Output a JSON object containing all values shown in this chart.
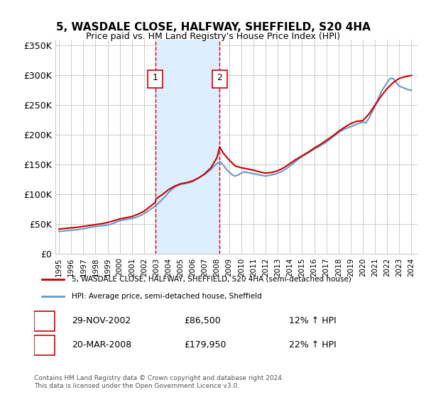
{
  "title": "5, WASDALE CLOSE, HALFWAY, SHEFFIELD, S20 4HA",
  "subtitle": "Price paid vs. HM Land Registry's House Price Index (HPI)",
  "ylabel": "",
  "xlabel": "",
  "ylim": [
    0,
    360000
  ],
  "yticks": [
    0,
    50000,
    100000,
    150000,
    200000,
    250000,
    300000,
    350000
  ],
  "ytick_labels": [
    "£0",
    "£50K",
    "£100K",
    "£150K",
    "£200K",
    "£250K",
    "£300K",
    "£350K"
  ],
  "transaction1": {
    "date_num": 2002.91,
    "price": 86500,
    "label": "1",
    "date_str": "29-NOV-2002",
    "hpi_pct": "12%"
  },
  "transaction2": {
    "date_num": 2008.22,
    "price": 179950,
    "label": "2",
    "date_str": "20-MAR-2008",
    "hpi_pct": "22%"
  },
  "legend_red": "5, WASDALE CLOSE, HALFWAY, SHEFFIELD, S20 4HA (semi-detached house)",
  "legend_blue": "HPI: Average price, semi-detached house, Sheffield",
  "footer": "Contains HM Land Registry data © Crown copyright and database right 2024.\nThis data is licensed under the Open Government Licence v3.0.",
  "red_color": "#cc0000",
  "blue_color": "#6699cc",
  "shade_color": "#ddeeff",
  "grid_color": "#cccccc",
  "bg_color": "#ffffff",
  "marker_box_color": "#cc0000",
  "hpi_data": {
    "years": [
      1995.0,
      1995.25,
      1995.5,
      1995.75,
      1996.0,
      1996.25,
      1996.5,
      1996.75,
      1997.0,
      1997.25,
      1997.5,
      1997.75,
      1998.0,
      1998.25,
      1998.5,
      1998.75,
      1999.0,
      1999.25,
      1999.5,
      1999.75,
      2000.0,
      2000.25,
      2000.5,
      2000.75,
      2001.0,
      2001.25,
      2001.5,
      2001.75,
      2002.0,
      2002.25,
      2002.5,
      2002.75,
      2003.0,
      2003.25,
      2003.5,
      2003.75,
      2004.0,
      2004.25,
      2004.5,
      2004.75,
      2005.0,
      2005.25,
      2005.5,
      2005.75,
      2006.0,
      2006.25,
      2006.5,
      2006.75,
      2007.0,
      2007.25,
      2007.5,
      2007.75,
      2008.0,
      2008.25,
      2008.5,
      2008.75,
      2009.0,
      2009.25,
      2009.5,
      2009.75,
      2010.0,
      2010.25,
      2010.5,
      2010.75,
      2011.0,
      2011.25,
      2011.5,
      2011.75,
      2012.0,
      2012.25,
      2012.5,
      2012.75,
      2013.0,
      2013.25,
      2013.5,
      2013.75,
      2014.0,
      2014.25,
      2014.5,
      2014.75,
      2015.0,
      2015.25,
      2015.5,
      2015.75,
      2016.0,
      2016.25,
      2016.5,
      2016.75,
      2017.0,
      2017.25,
      2017.5,
      2017.75,
      2018.0,
      2018.25,
      2018.5,
      2018.75,
      2019.0,
      2019.25,
      2019.5,
      2019.75,
      2020.0,
      2020.25,
      2020.5,
      2020.75,
      2021.0,
      2021.25,
      2021.5,
      2021.75,
      2022.0,
      2022.25,
      2022.5,
      2022.75,
      2023.0,
      2023.25,
      2023.5,
      2023.75,
      2024.0
    ],
    "values": [
      38000,
      38500,
      39000,
      39500,
      40000,
      40500,
      41000,
      41800,
      42500,
      43500,
      44500,
      45500,
      46500,
      47000,
      47500,
      48000,
      49000,
      50000,
      52000,
      54000,
      56000,
      57000,
      58000,
      59000,
      60000,
      61000,
      63000,
      65000,
      68000,
      71000,
      75000,
      78000,
      82000,
      87000,
      92000,
      97000,
      103000,
      108000,
      112000,
      115000,
      117000,
      118000,
      119000,
      120000,
      122000,
      125000,
      128000,
      131000,
      134000,
      138000,
      142000,
      148000,
      152000,
      155000,
      150000,
      143000,
      138000,
      133000,
      131000,
      133000,
      136000,
      138000,
      137000,
      136000,
      135000,
      134000,
      133000,
      132000,
      131000,
      132000,
      133000,
      134000,
      136000,
      138000,
      141000,
      144000,
      148000,
      152000,
      156000,
      160000,
      164000,
      167000,
      170000,
      173000,
      176000,
      179000,
      182000,
      185000,
      188000,
      192000,
      196000,
      200000,
      204000,
      207000,
      210000,
      212000,
      214000,
      216000,
      218000,
      220000,
      222000,
      220000,
      228000,
      238000,
      248000,
      260000,
      272000,
      280000,
      288000,
      295000,
      295000,
      288000,
      282000,
      280000,
      278000,
      276000,
      275000
    ]
  },
  "red_data": {
    "years": [
      1995.0,
      1995.5,
      1996.0,
      1996.5,
      1997.0,
      1997.5,
      1998.0,
      1998.5,
      1999.0,
      1999.5,
      2000.0,
      2000.5,
      2001.0,
      2001.5,
      2002.0,
      2002.5,
      2002.91,
      2003.0,
      2003.5,
      2004.0,
      2004.5,
      2005.0,
      2005.5,
      2006.0,
      2006.5,
      2007.0,
      2007.5,
      2008.0,
      2008.22,
      2008.5,
      2009.0,
      2009.5,
      2010.0,
      2010.5,
      2011.0,
      2011.5,
      2012.0,
      2012.5,
      2013.0,
      2013.5,
      2014.0,
      2014.5,
      2015.0,
      2015.5,
      2016.0,
      2016.5,
      2017.0,
      2017.5,
      2018.0,
      2018.5,
      2019.0,
      2019.5,
      2020.0,
      2020.5,
      2021.0,
      2021.5,
      2022.0,
      2022.5,
      2023.0,
      2023.5,
      2024.0
    ],
    "values": [
      42000,
      43000,
      44000,
      45000,
      46500,
      48000,
      49500,
      51000,
      53000,
      56000,
      59000,
      61000,
      63000,
      67000,
      72000,
      80000,
      86500,
      93000,
      100000,
      108000,
      114000,
      118000,
      120000,
      123000,
      128000,
      135000,
      145000,
      162000,
      179950,
      170000,
      158000,
      148000,
      145000,
      143000,
      141000,
      138000,
      136000,
      137000,
      140000,
      145000,
      152000,
      159000,
      165000,
      171000,
      178000,
      184000,
      191000,
      198000,
      206000,
      213000,
      219000,
      223000,
      224000,
      235000,
      250000,
      265000,
      278000,
      288000,
      295000,
      298000,
      300000
    ]
  }
}
